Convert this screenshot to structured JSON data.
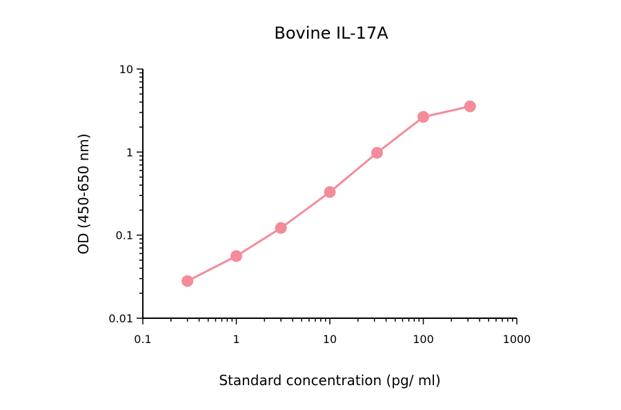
{
  "chart_data": {
    "type": "line",
    "title": "Bovine IL-17A",
    "xlabel": "Standard concentration (pg/ ml)",
    "ylabel": "OD (450-650 nm)",
    "x_scale": "log",
    "y_scale": "log",
    "xlim": [
      0.1,
      1000
    ],
    "ylim": [
      0.01,
      10
    ],
    "x_ticks": [
      "0.1",
      "1",
      "10",
      "100",
      "1000"
    ],
    "y_ticks": [
      "0.01",
      "0.1",
      "1",
      "10"
    ],
    "grid": false,
    "legend": "none",
    "series": [
      {
        "color": "#f48b9a",
        "x": [
          0.3,
          1,
          3,
          10,
          32,
          100,
          316
        ],
        "y": [
          0.028,
          0.056,
          0.122,
          0.33,
          0.98,
          2.65,
          3.55
        ]
      }
    ]
  }
}
